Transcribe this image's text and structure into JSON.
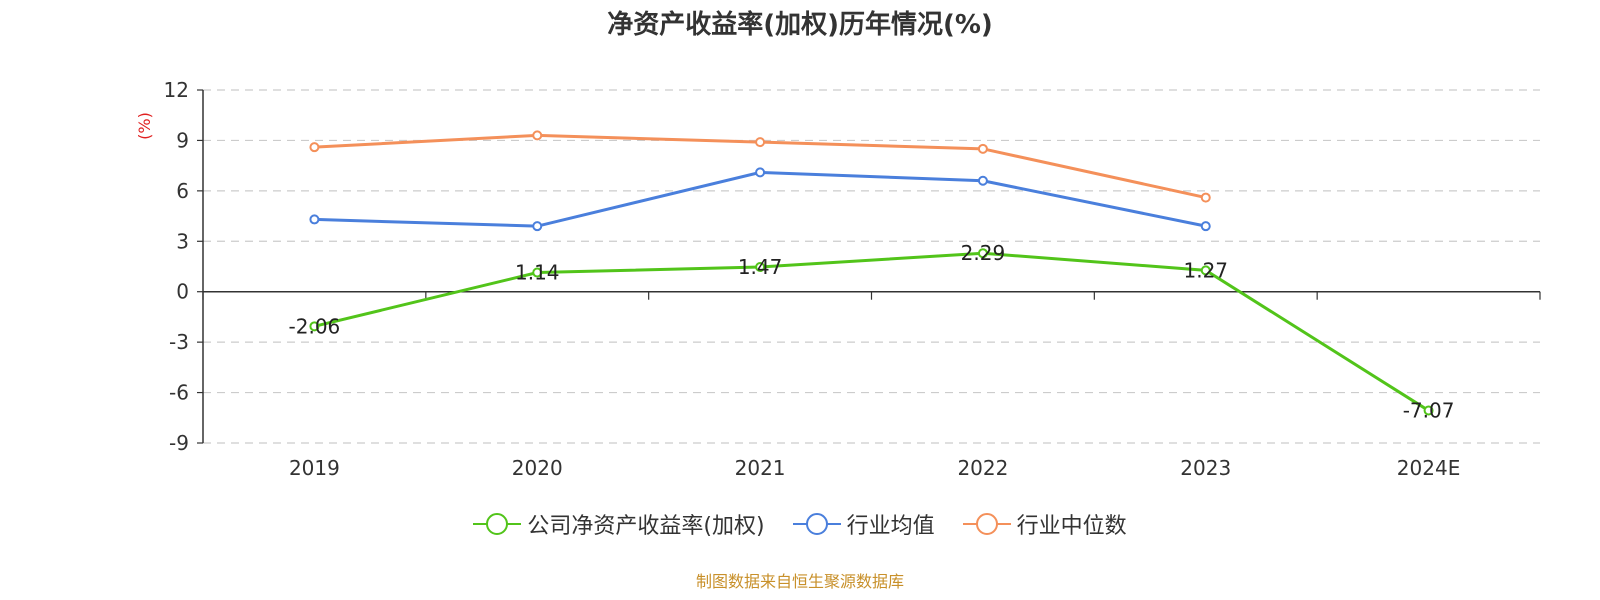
{
  "title": "净资产收益率(加权)历年情况(%)",
  "source": "制图数据来自恒生聚源数据库",
  "chart_data": {
    "type": "line",
    "title": "净资产收益率(加权)历年情况(%)",
    "ylabel": "(%)",
    "xlabel": "",
    "categories": [
      "2019",
      "2020",
      "2021",
      "2022",
      "2023",
      "2024E"
    ],
    "yticks": [
      12,
      9,
      6,
      3,
      0,
      -3,
      -6,
      -9
    ],
    "ylim": [
      -9,
      12
    ],
    "grid": true,
    "legend_position": "bottom",
    "series": [
      {
        "name": "公司净资产收益率(加权)",
        "color": "#52c41a",
        "values": [
          -2.06,
          1.14,
          1.47,
          2.29,
          1.27,
          -7.07
        ],
        "labels": [
          "-2.06",
          "1.14",
          "1.47",
          "2.29",
          "1.27",
          "-7.07"
        ]
      },
      {
        "name": "行业均值",
        "color": "#4a7fdc",
        "values": [
          4.3,
          3.9,
          7.1,
          6.6,
          3.9,
          null
        ]
      },
      {
        "name": "行业中位数",
        "color": "#f4905a",
        "values": [
          8.6,
          9.3,
          8.9,
          8.5,
          5.6,
          null
        ]
      }
    ]
  }
}
